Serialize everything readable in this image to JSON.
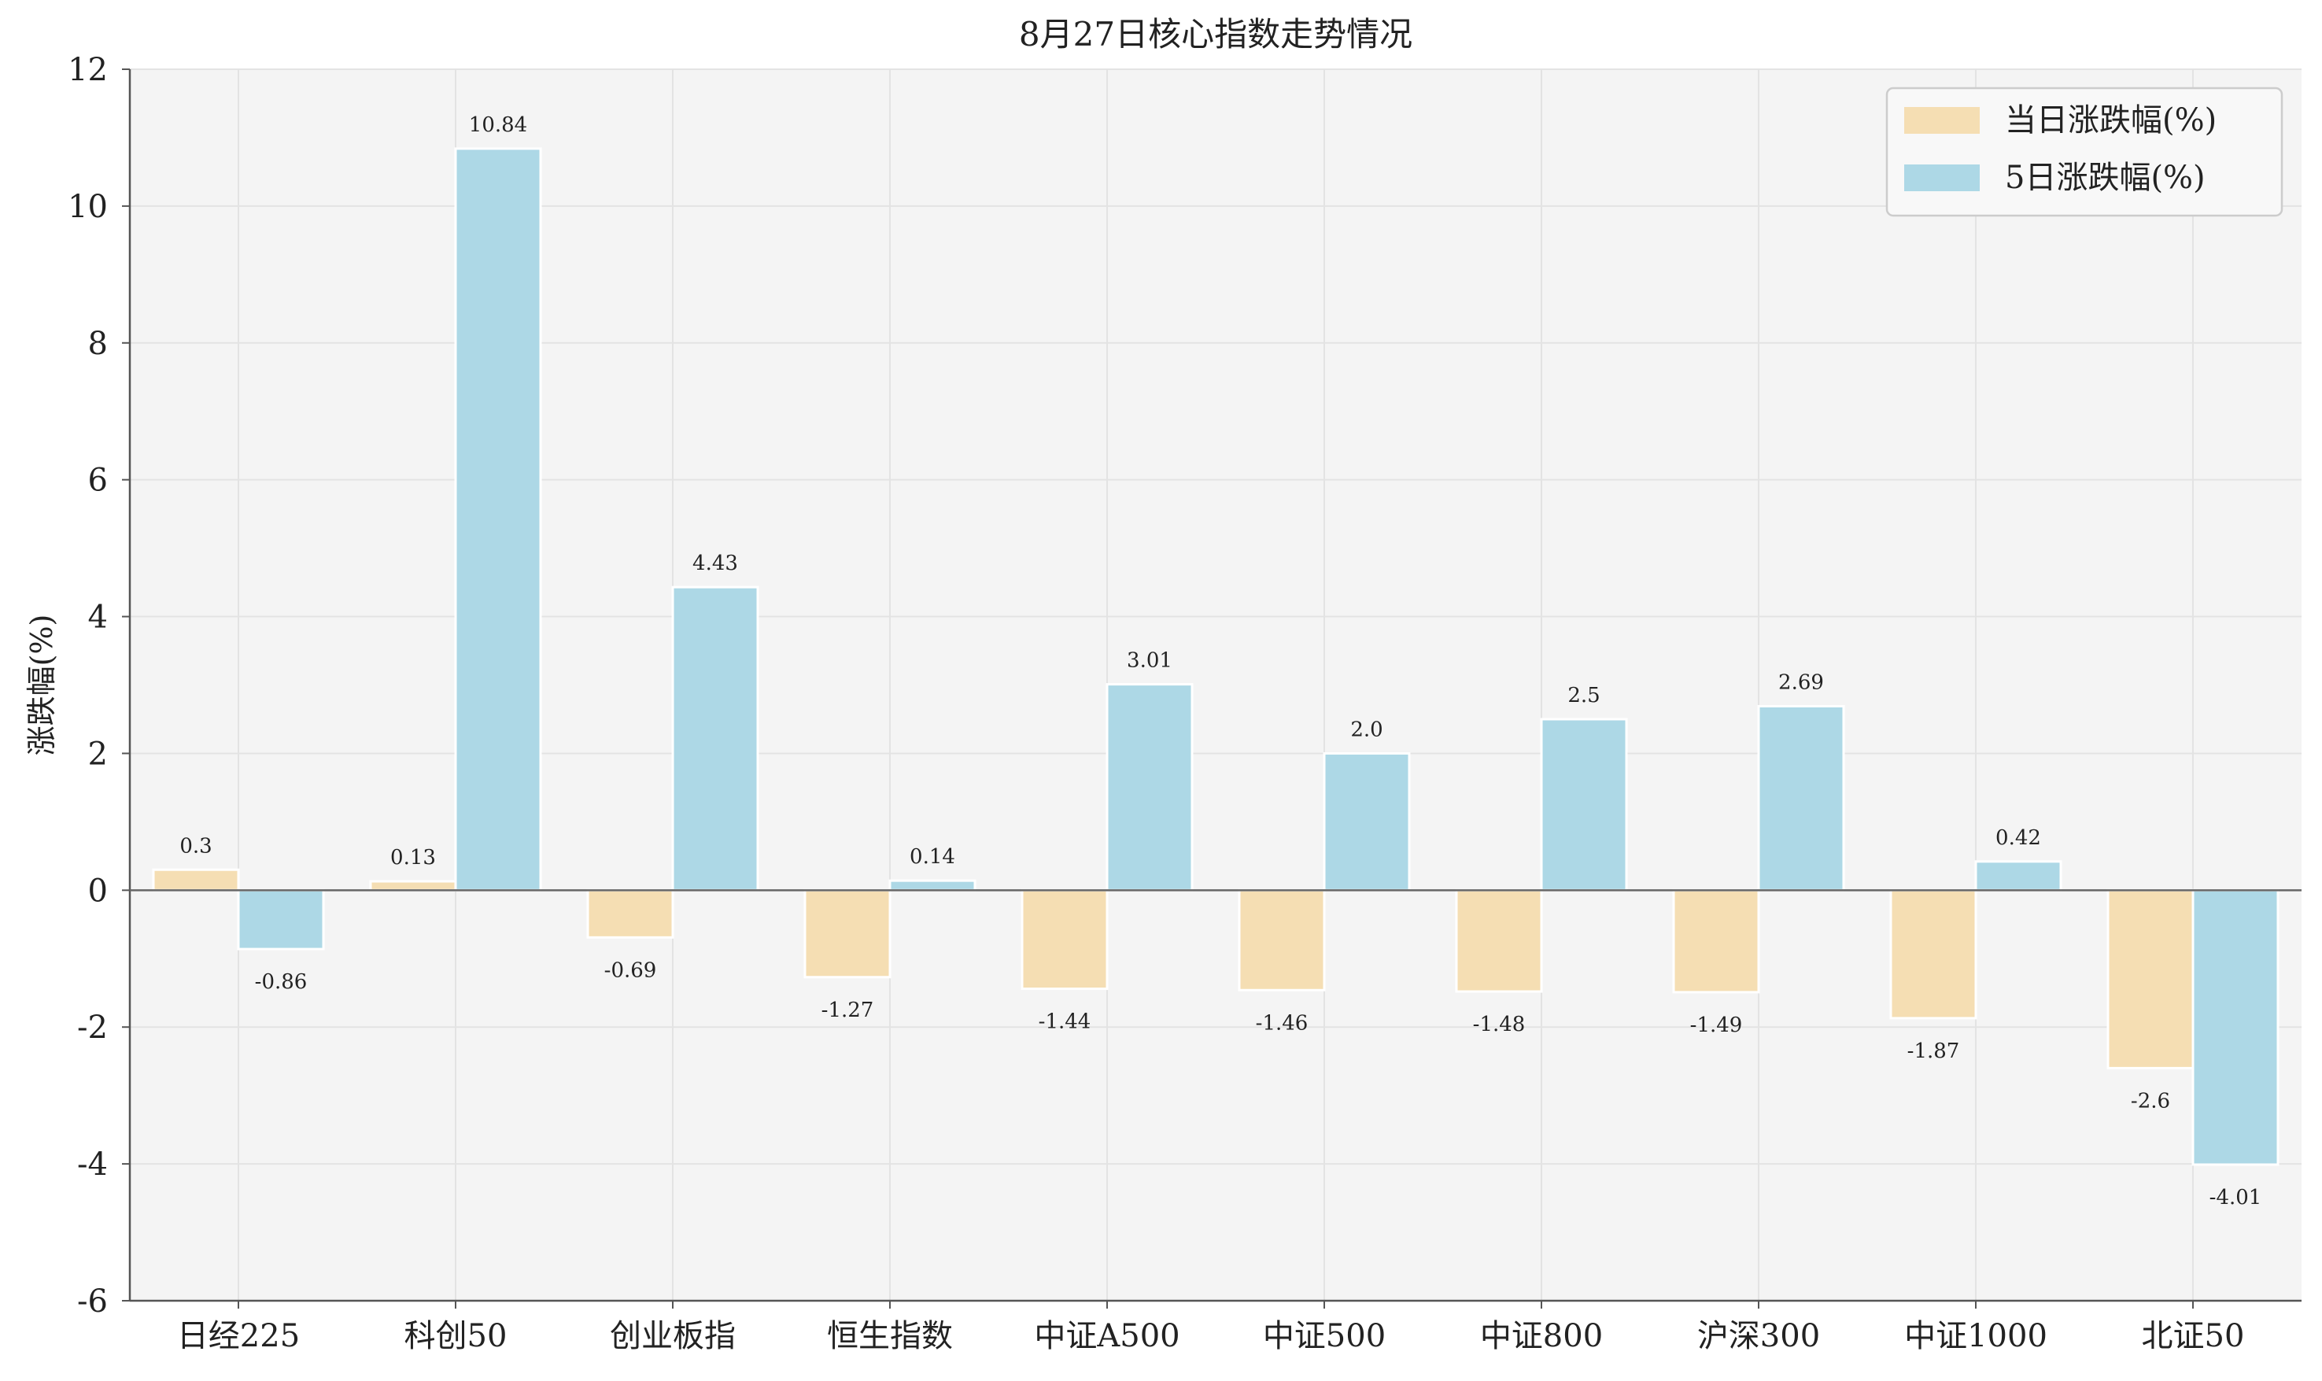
{
  "chart_data": {
    "type": "bar",
    "title": "8月27日核心指数走势情况",
    "xlabel": "",
    "ylabel": "涨跌幅(%)",
    "ylim": [
      -6,
      12
    ],
    "yticks": [
      -6,
      -4,
      -2,
      0,
      2,
      4,
      6,
      8,
      10,
      12
    ],
    "ytick_labels": [
      "-6",
      "-4",
      "-2",
      "0",
      "2",
      "4",
      "6",
      "8",
      "10",
      "12"
    ],
    "grid": true,
    "legend_position": "top-right",
    "categories": [
      "日经225",
      "科创50",
      "创业板指",
      "恒生指数",
      "中证A500",
      "中证500",
      "中证800",
      "沪深300",
      "中证1000",
      "北证50"
    ],
    "series": [
      {
        "name": "当日涨跌幅(%)",
        "color": "#f5deb3",
        "values": [
          0.3,
          0.13,
          -0.69,
          -1.27,
          -1.44,
          -1.46,
          -1.48,
          -1.49,
          -1.87,
          -2.6
        ],
        "labels": [
          "0.3",
          "0.13",
          "-0.69",
          "-1.27",
          "-1.44",
          "-1.46",
          "-1.48",
          "-1.49",
          "-1.87",
          "-2.6"
        ]
      },
      {
        "name": "5日涨跌幅(%)",
        "color": "#add8e6",
        "values": [
          -0.86,
          10.84,
          4.43,
          0.14,
          3.01,
          2.0,
          2.5,
          2.69,
          0.42,
          -4.01
        ],
        "labels": [
          "-0.86",
          "10.84",
          "4.43",
          "0.14",
          "3.01",
          "2.0",
          "2.5",
          "2.69",
          "0.42",
          "-4.01"
        ]
      }
    ],
    "colors": {
      "plot_background": "#f4f4f4",
      "grid": "#e3e3e3",
      "axis": "#555555",
      "text": "#222222"
    }
  }
}
